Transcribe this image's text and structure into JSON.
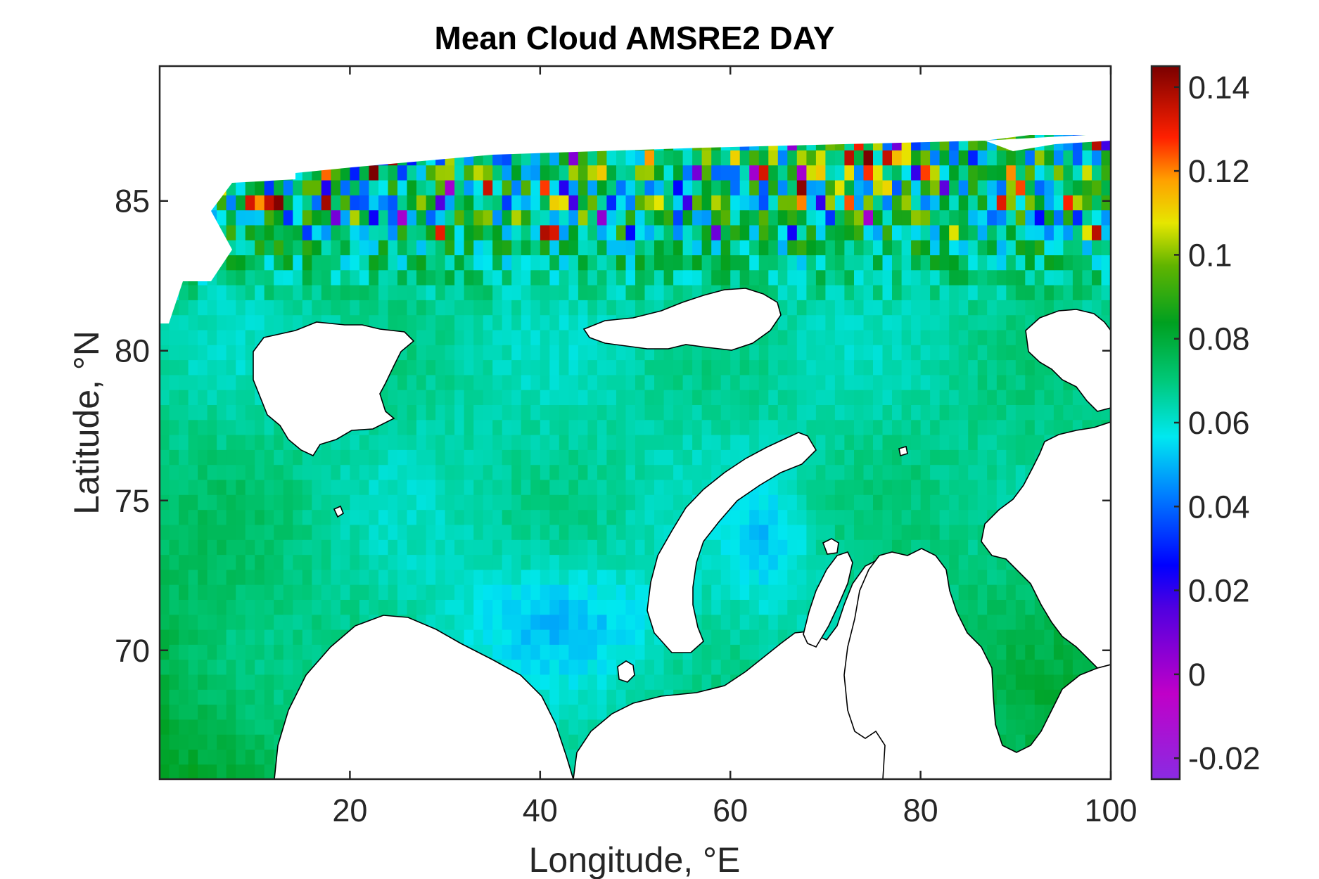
{
  "chart_data": {
    "type": "heatmap",
    "title": "Mean Cloud AMSRE2 DAY",
    "xlabel": "Longitude, °E",
    "ylabel": "Latitude, °N",
    "xlim": [
      0,
      100
    ],
    "ylim": [
      65.7,
      89.5
    ],
    "x_ticks": [
      20,
      40,
      60,
      80,
      100
    ],
    "x_tick_labels": [
      "20",
      "40",
      "60",
      "80",
      "100"
    ],
    "y_ticks": [
      70,
      75,
      80,
      85
    ],
    "y_tick_labels": [
      "70",
      "75",
      "80",
      "85"
    ],
    "colorbar": {
      "colormap": "jet-like (violet-blue-cyan-green-yellow-red-darkred)",
      "range": [
        -0.025,
        0.145
      ],
      "ticks": [
        -0.02,
        0,
        0.02,
        0.04,
        0.06,
        0.08,
        0.1,
        0.12,
        0.14
      ],
      "tick_labels": [
        "-0.02",
        "0",
        "0.02",
        "0.04",
        "0.06",
        "0.08",
        "0.1",
        "0.12",
        "0.14"
      ]
    },
    "field_summary": {
      "barents_sea_typical": 0.065,
      "norwegian_sea_typical": 0.075,
      "kara_sea_typical": 0.075,
      "north_of_82N_range": [
        0.0,
        0.145
      ],
      "north_of_87N": "no data"
    },
    "landmasses": [
      "Svalbard",
      "Franz Josef Land",
      "Novaya Zemlya",
      "Scandinavia / Kola",
      "Yamal / Gydan",
      "Severnaya Zemlya",
      "Taymyr"
    ]
  }
}
